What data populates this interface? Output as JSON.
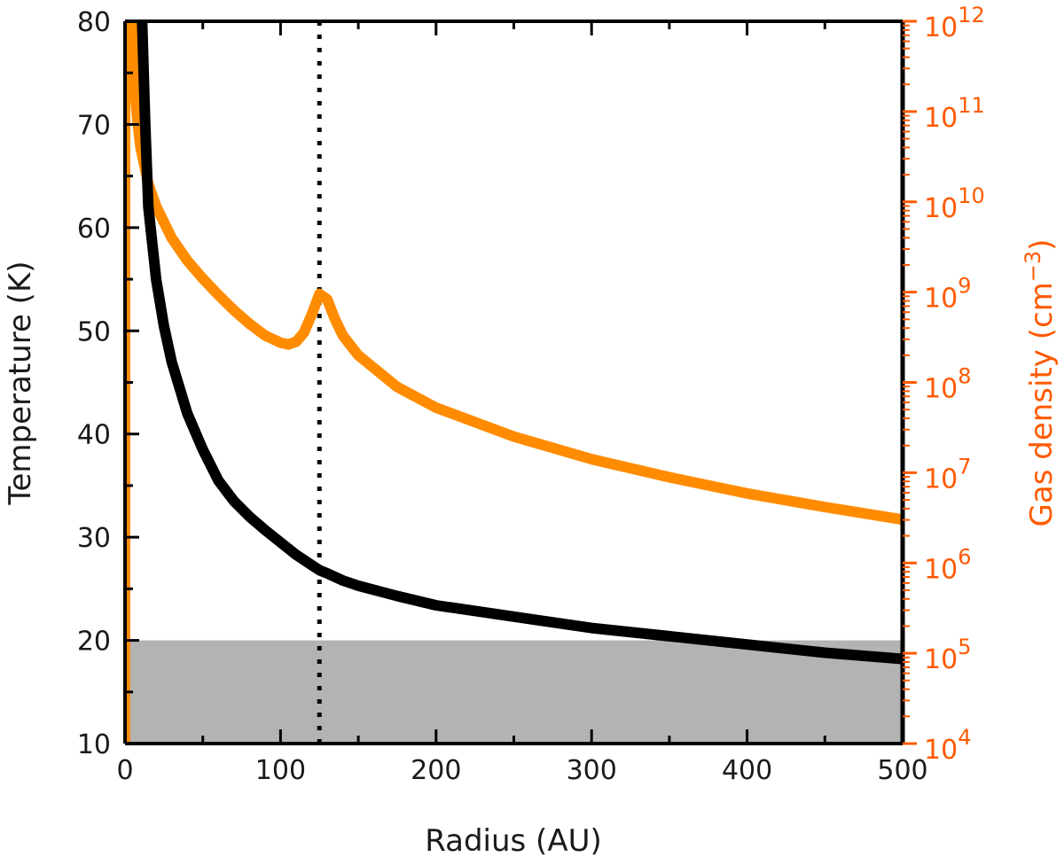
{
  "chart_data": {
    "type": "line",
    "xlabel": "Radius (AU)",
    "ylabel": "Temperature (K)",
    "y2label_main": "Gas density (cm",
    "y2label_sup": "−3",
    "y2label_close": ")",
    "xlim": [
      0,
      500
    ],
    "ylim": [
      10,
      80
    ],
    "y2lim_log10": [
      4,
      12
    ],
    "y2scale": "log",
    "x_ticks": [
      "0",
      "100",
      "200",
      "300",
      "400",
      "500"
    ],
    "y_ticks": [
      "10",
      "20",
      "30",
      "40",
      "50",
      "60",
      "70",
      "80"
    ],
    "y2_ticks": [
      {
        "base": "10",
        "exp": "4"
      },
      {
        "base": "10",
        "exp": "5"
      },
      {
        "base": "10",
        "exp": "6"
      },
      {
        "base": "10",
        "exp": "7"
      },
      {
        "base": "10",
        "exp": "8"
      },
      {
        "base": "10",
        "exp": "9"
      },
      {
        "base": "10",
        "exp": "10"
      },
      {
        "base": "10",
        "exp": "11"
      },
      {
        "base": "10",
        "exp": "12"
      }
    ],
    "shaded_band": {
      "y_from": 10,
      "y_to": 20,
      "color": "#b3b3b3"
    },
    "vline": {
      "x": 125,
      "style": "dotted",
      "color": "#000000"
    },
    "colors": {
      "temperature": "#000000",
      "density": "#ff8c00",
      "density_axis": "#ff5a00"
    },
    "series": [
      {
        "axis": "left",
        "x": [
          11,
          13,
          15,
          20,
          25,
          30,
          40,
          50,
          60,
          70,
          80,
          90,
          100,
          110,
          120,
          125,
          130,
          140,
          150,
          175,
          200,
          250,
          300,
          350,
          400,
          450,
          500
        ],
        "values": [
          80,
          70,
          62,
          55,
          50.5,
          47,
          42,
          38.5,
          35.5,
          33.5,
          32,
          30.7,
          29.5,
          28.3,
          27.3,
          26.8,
          26.5,
          25.8,
          25.3,
          24.3,
          23.4,
          22.3,
          21.2,
          20.4,
          19.6,
          18.8,
          18.2
        ]
      },
      {
        "axis": "right",
        "x": [
          5,
          6,
          8,
          10,
          15,
          20,
          30,
          40,
          50,
          60,
          70,
          80,
          90,
          100,
          105,
          110,
          115,
          120,
          125,
          130,
          135,
          140,
          150,
          175,
          200,
          250,
          300,
          350,
          400,
          450,
          500
        ],
        "log10_values": [
          12,
          11.3,
          10.9,
          10.6,
          10.2,
          9.95,
          9.6,
          9.35,
          9.15,
          8.97,
          8.8,
          8.65,
          8.52,
          8.44,
          8.42,
          8.45,
          8.55,
          8.75,
          8.98,
          8.92,
          8.7,
          8.52,
          8.3,
          7.95,
          7.72,
          7.4,
          7.15,
          6.95,
          6.77,
          6.62,
          6.48
        ]
      }
    ]
  }
}
